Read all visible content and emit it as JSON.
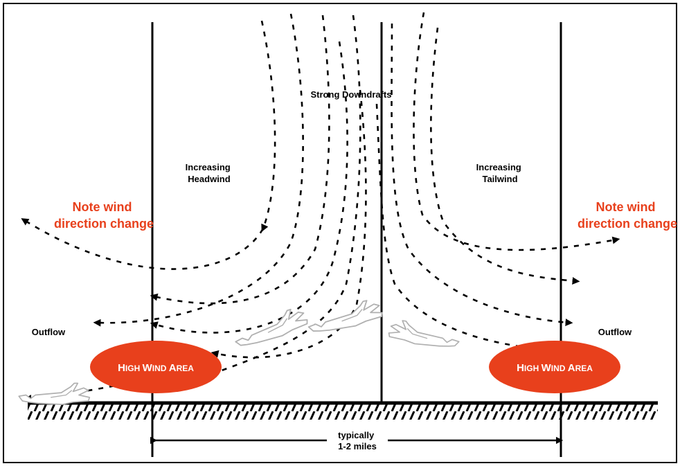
{
  "labels": {
    "strong_downdrafts": "Strong Downdrafts",
    "increasing_headwind_line1": "Increasing",
    "increasing_headwind_line2": "Headwind",
    "increasing_tailwind_line1": "Increasing",
    "increasing_tailwind_line2": "Tailwind",
    "note_left_line1": "Note wind",
    "note_left_line2": "direction change",
    "note_right_line1": "Note wind",
    "note_right_line2": "direction change",
    "outflow_left": "Outflow",
    "outflow_right": "Outflow",
    "high_wind_left": {
      "cap1": "H",
      "rest1": "IGH ",
      "cap2": "W",
      "rest2": "IND ",
      "cap3": "A",
      "rest3": "REA"
    },
    "high_wind_right": {
      "cap1": "H",
      "rest1": "IGH ",
      "cap2": "W",
      "rest2": "IND ",
      "cap3": "A",
      "rest3": "REA"
    },
    "distance_line1": "typically",
    "distance_line2": "1-2 miles"
  },
  "colors": {
    "accent_red": "#e8401c",
    "ink": "#000000",
    "aircraft_outline": "#b0b0b0"
  },
  "icons": {
    "aircraft": "airplane-silhouette-icon",
    "arrowhead": "arrowhead-icon"
  }
}
